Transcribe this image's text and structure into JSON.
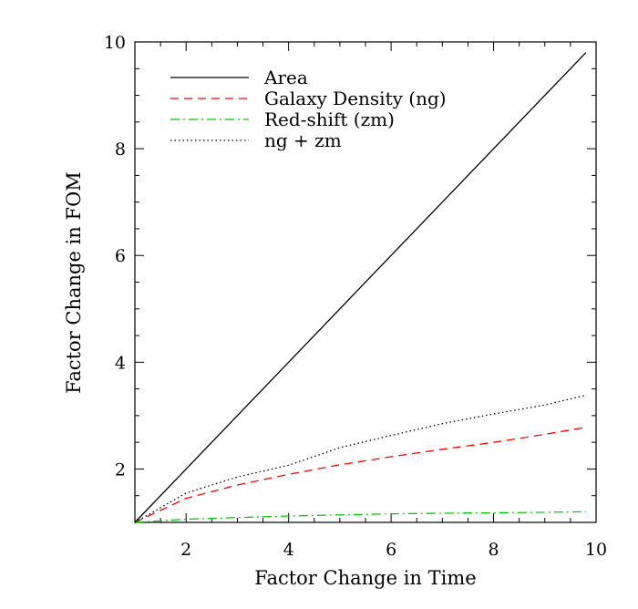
{
  "chart_data": {
    "type": "line",
    "title": "",
    "xlabel": "Factor Change in Time",
    "ylabel": "Factor Change in FOM",
    "xlim": [
      1,
      10
    ],
    "ylim": [
      1,
      10
    ],
    "xticks": [
      2,
      4,
      6,
      8,
      10
    ],
    "yticks": [
      2,
      4,
      6,
      8,
      10
    ],
    "grid": false,
    "legend_position": "top-left",
    "series": [
      {
        "name": "Area",
        "color": "#000000",
        "dash": "solid",
        "x": [
          1,
          9.8
        ],
        "y": [
          1,
          9.8
        ]
      },
      {
        "name": "Galaxy Density (ng)",
        "color": "#ff0000",
        "dash": "dashed",
        "x": [
          1,
          2,
          3,
          4,
          5,
          6,
          7,
          8,
          9,
          9.8
        ],
        "y": [
          1,
          1.45,
          1.7,
          1.9,
          2.08,
          2.23,
          2.37,
          2.5,
          2.65,
          2.78
        ]
      },
      {
        "name": "Red-shift (zm)",
        "color": "#00cc00",
        "dash": "dashdot",
        "x": [
          1,
          2,
          3,
          4,
          5,
          6,
          7,
          8,
          9,
          9.8
        ],
        "y": [
          1,
          1.06,
          1.09,
          1.12,
          1.14,
          1.16,
          1.17,
          1.18,
          1.19,
          1.2
        ]
      },
      {
        "name": "ng + zm",
        "color": "#000000",
        "dash": "dotted",
        "x": [
          1,
          2,
          3,
          4,
          5,
          6,
          7,
          8,
          9,
          9.8
        ],
        "y": [
          1,
          1.55,
          1.85,
          2.07,
          2.4,
          2.63,
          2.85,
          3.03,
          3.2,
          3.38
        ]
      }
    ]
  }
}
